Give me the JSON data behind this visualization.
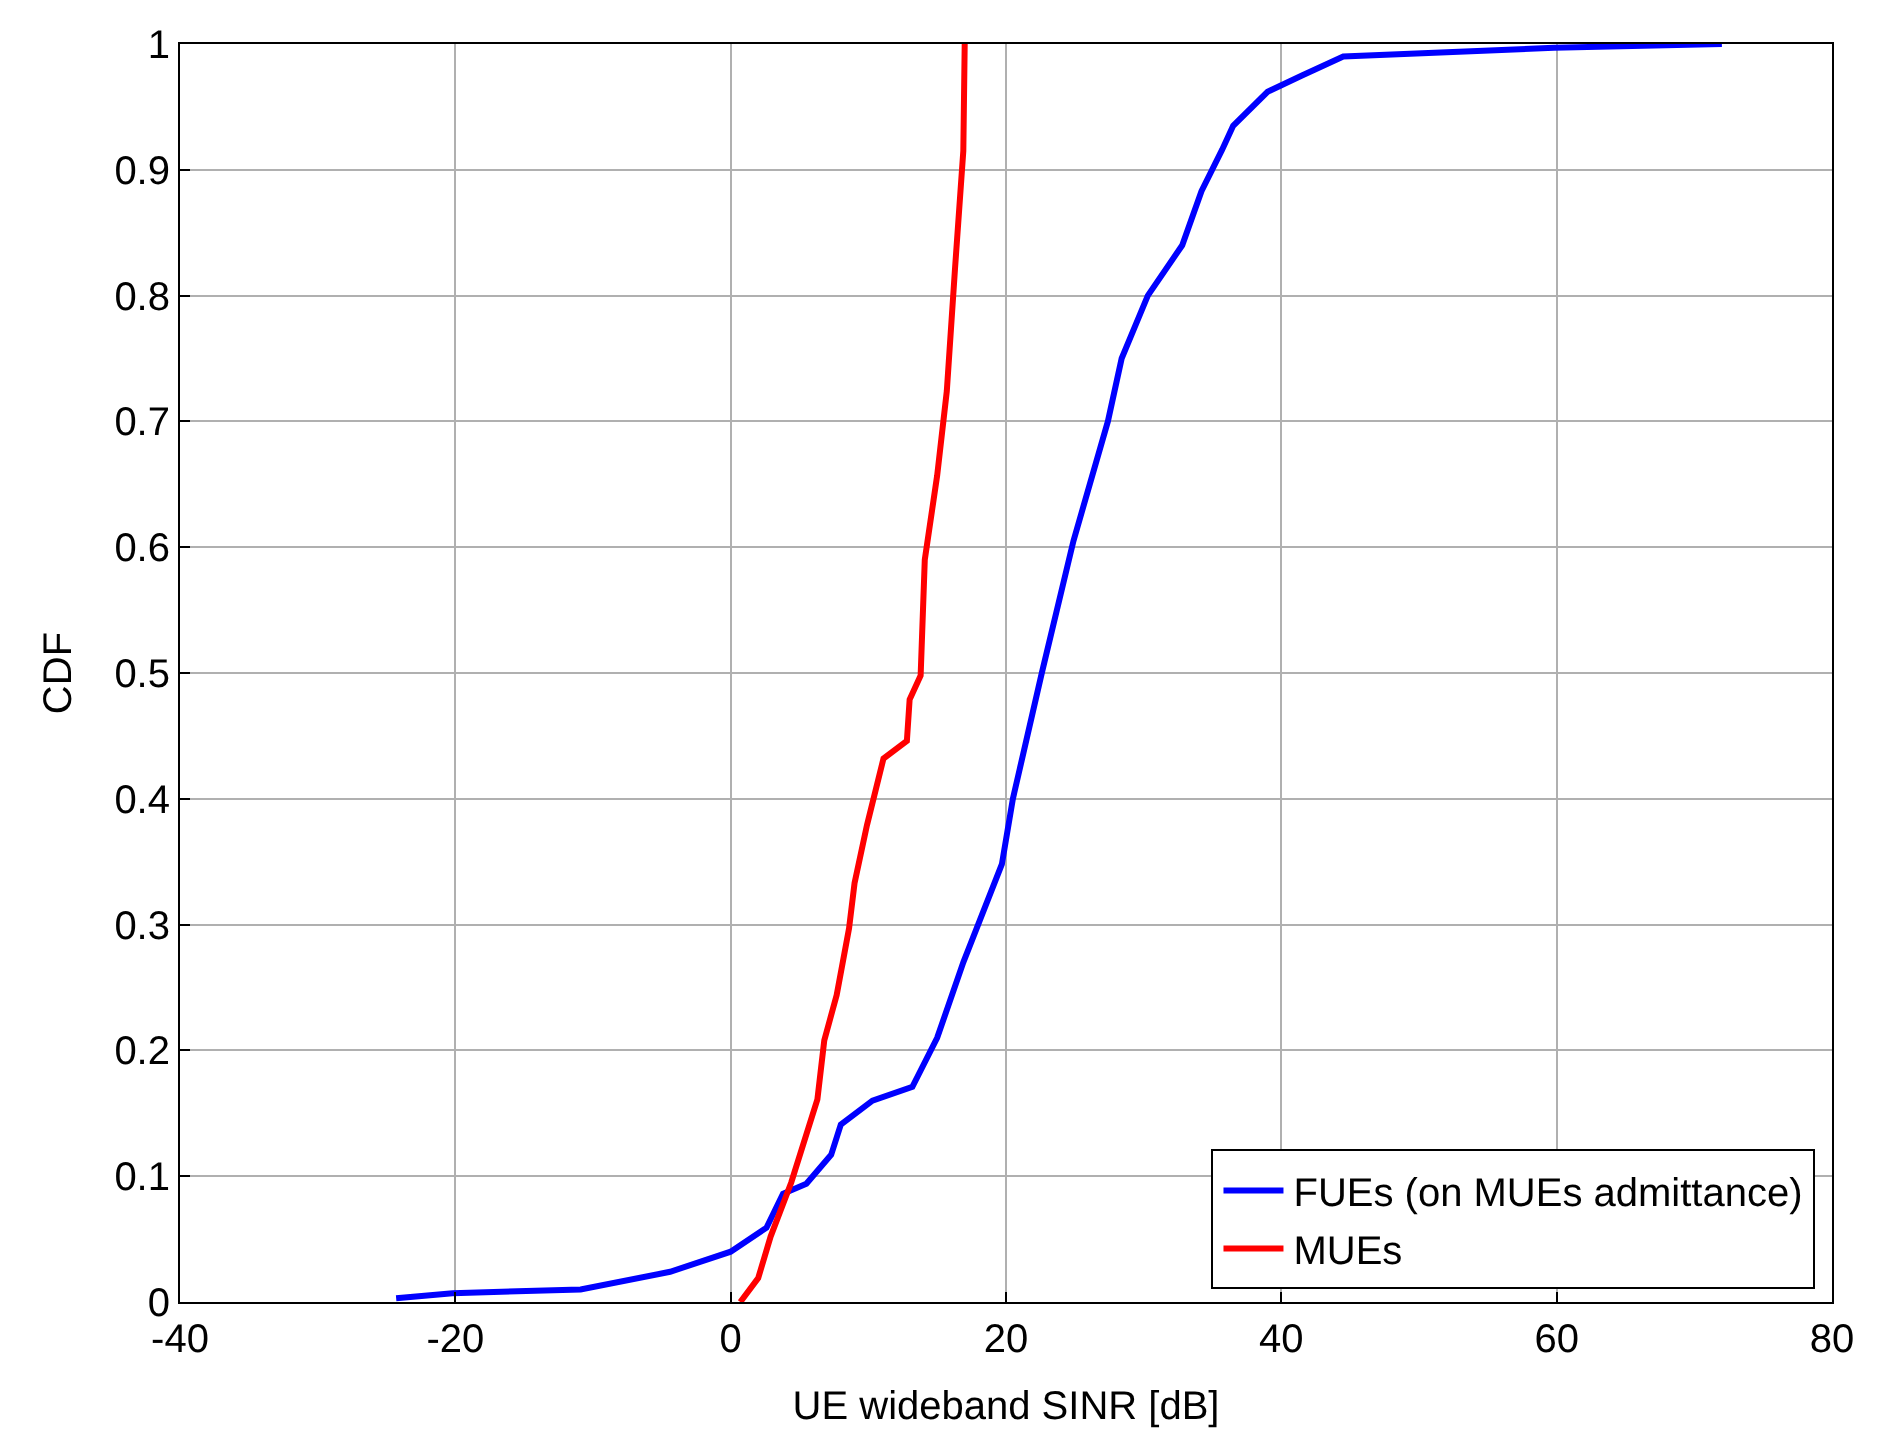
{
  "chart_data": {
    "type": "line",
    "xlabel": "UE wideband SINR [dB]",
    "ylabel": "CDF",
    "xlim": [
      -40,
      80
    ],
    "xticks": [
      -40,
      -20,
      0,
      20,
      40,
      60,
      80
    ],
    "ylim": [
      0,
      1
    ],
    "yticks": [
      0,
      0.1,
      0.2,
      0.3,
      0.4,
      0.5,
      0.6,
      0.7,
      0.8,
      0.9,
      1
    ],
    "grid": true,
    "legend": "bottom right",
    "line_style": "solid",
    "marker": "none",
    "series": [
      {
        "name": "FUEs (on MUEs admittance)",
        "color": "#0000ff",
        "x": [
          -24.3,
          -20.2,
          -10.9,
          -4.4,
          0,
          2.6,
          3.8,
          5.5,
          7.3,
          8,
          10.3,
          13.2,
          15,
          16.9,
          19.7,
          20.5,
          22.6,
          24.9,
          27.4,
          28.4,
          30.3,
          32.8,
          34.2,
          35.7,
          36.5,
          39,
          41.5,
          44.5,
          59.8,
          72
        ],
        "values": [
          0.003,
          0.007,
          0.01,
          0.024,
          0.04,
          0.059,
          0.086,
          0.094,
          0.117,
          0.141,
          0.16,
          0.171,
          0.21,
          0.27,
          0.348,
          0.4,
          0.5,
          0.605,
          0.7,
          0.75,
          0.8,
          0.84,
          0.883,
          0.916,
          0.935,
          0.962,
          0.975,
          0.99,
          0.997,
          1
        ]
      },
      {
        "name": "MUEs",
        "color": "#ff0000",
        "x": [
          0.7,
          2.0,
          2.9,
          4.4,
          6.3,
          6.8,
          7.7,
          8.6,
          9.0,
          9.9,
          11.1,
          12.8,
          13,
          13.8,
          14.1,
          15,
          15.7,
          16.3,
          16.9,
          17.0
        ],
        "values": [
          0,
          0.019,
          0.052,
          0.095,
          0.161,
          0.208,
          0.244,
          0.297,
          0.333,
          0.379,
          0.432,
          0.446,
          0.479,
          0.498,
          0.59,
          0.657,
          0.724,
          0.822,
          0.915,
          1
        ]
      }
    ]
  }
}
